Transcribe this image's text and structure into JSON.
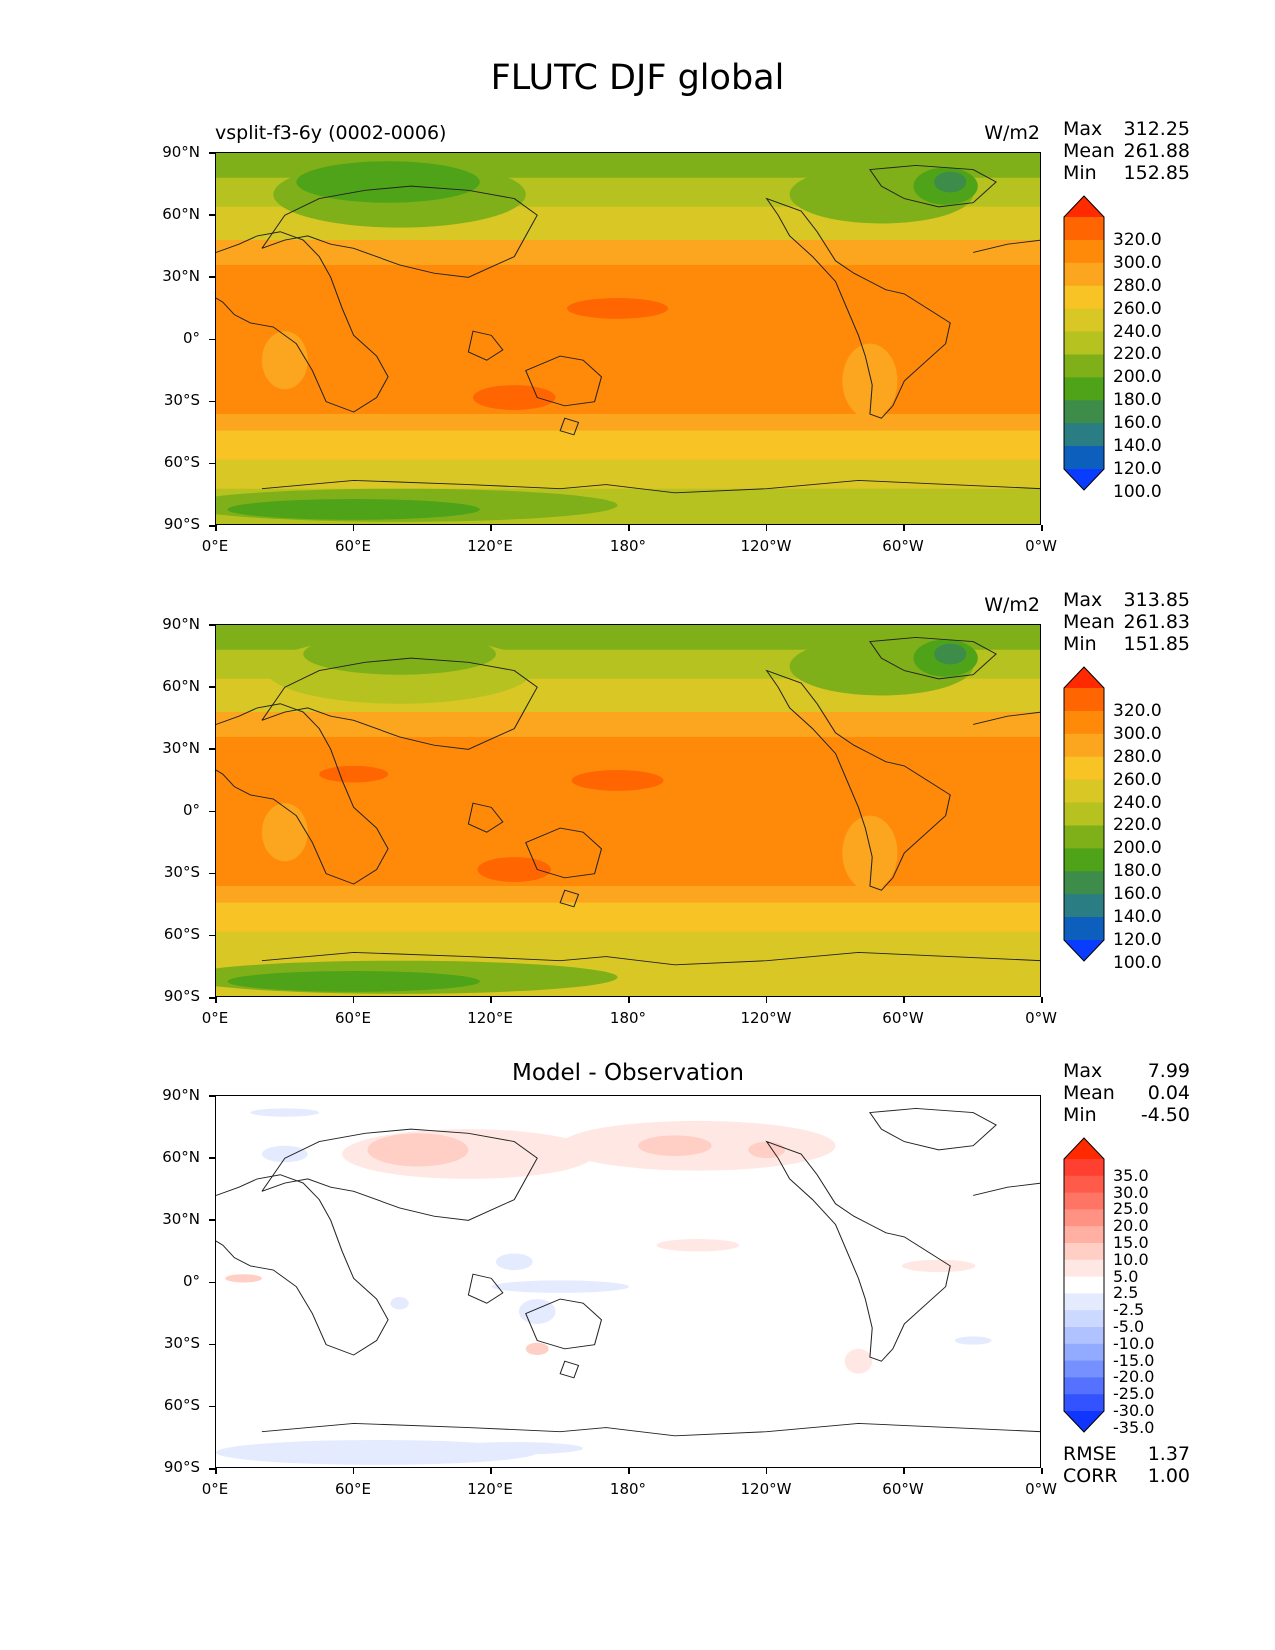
{
  "title": "FLUTC DJF global",
  "axes": {
    "lat_labels": [
      "90°N",
      "60°N",
      "30°N",
      "0°",
      "30°S",
      "60°S",
      "90°S"
    ],
    "lon_labels": [
      "0°E",
      "60°E",
      "120°E",
      "180°",
      "120°W",
      "60°W",
      "0°W"
    ]
  },
  "panels": [
    {
      "id": "model",
      "left_title": "vsplit-f3-6y (0002-0006)",
      "units": "W/m2",
      "stats": [
        {
          "label": "Max",
          "value": "312.25"
        },
        {
          "label": "Mean",
          "value": "261.88"
        },
        {
          "label": "Min",
          "value": "152.85"
        }
      ],
      "colorbar": {
        "labels": [
          "320.0",
          "300.0",
          "280.0",
          "260.0",
          "240.0",
          "220.0",
          "200.0",
          "180.0",
          "160.0",
          "140.0",
          "120.0",
          "100.0"
        ],
        "colors": [
          "#ff2a00",
          "#ff6500",
          "#ff8a0a",
          "#fca51e",
          "#f8c425",
          "#d9c725",
          "#b6c21f",
          "#7fb01a",
          "#4fa318",
          "#3d8c4a",
          "#2a7d82",
          "#0d5fbe",
          "#0a3cff"
        ]
      }
    },
    {
      "id": "obs",
      "left_title": "",
      "units": "W/m2",
      "stats": [
        {
          "label": "Max",
          "value": "313.85"
        },
        {
          "label": "Mean",
          "value": "261.83"
        },
        {
          "label": "Min",
          "value": "151.85"
        }
      ],
      "colorbar": {
        "labels": [
          "320.0",
          "300.0",
          "280.0",
          "260.0",
          "240.0",
          "220.0",
          "200.0",
          "180.0",
          "160.0",
          "140.0",
          "120.0",
          "100.0"
        ],
        "colors": [
          "#ff2a00",
          "#ff6500",
          "#ff8a0a",
          "#fca51e",
          "#f8c425",
          "#d9c725",
          "#b6c21f",
          "#7fb01a",
          "#4fa318",
          "#3d8c4a",
          "#2a7d82",
          "#0d5fbe",
          "#0a3cff"
        ]
      }
    },
    {
      "id": "diff",
      "center_title": "Model - Observation",
      "stats": [
        {
          "label": "Max",
          "value": "7.99"
        },
        {
          "label": "Mean",
          "value": "0.04"
        },
        {
          "label": "Min",
          "value": "-4.50"
        }
      ],
      "colorbar": {
        "labels": [
          "35.0",
          "30.0",
          "25.0",
          "20.0",
          "15.0",
          "10.0",
          "5.0",
          "2.5",
          "-2.5",
          "-5.0",
          "-10.0",
          "-15.0",
          "-20.0",
          "-25.0",
          "-30.0",
          "-35.0"
        ],
        "colors": [
          "#ff2a00",
          "#ff4030",
          "#ff5a4a",
          "#ff7565",
          "#ff9282",
          "#ffb0a2",
          "#ffcfc6",
          "#ffe8e3",
          "#ffffff",
          "#e4ebff",
          "#cbd8ff",
          "#b0c2ff",
          "#93abff",
          "#7590ff",
          "#5472ff",
          "#3253ff",
          "#0f35ff"
        ]
      },
      "footer_stats": [
        {
          "label": "RMSE",
          "value": "1.37"
        },
        {
          "label": "CORR",
          "value": "1.00"
        }
      ]
    }
  ]
}
